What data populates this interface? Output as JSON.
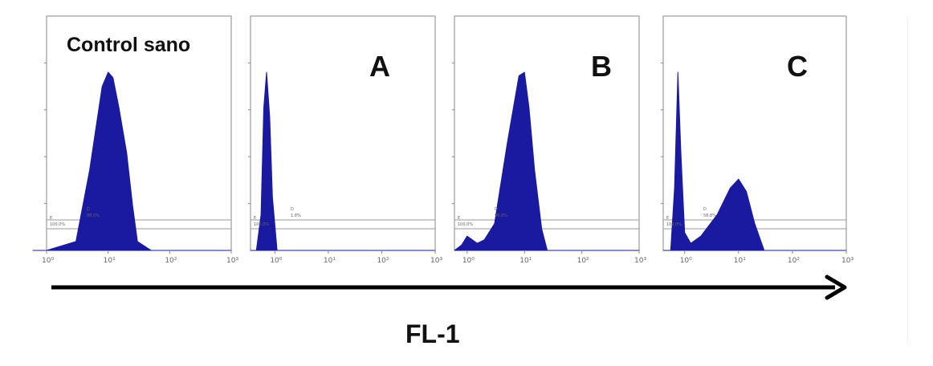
{
  "chart_data": [
    {
      "type": "area",
      "title": "Control sano",
      "x_scale": "log",
      "x_tick_labels": [
        "10⁰",
        "10¹",
        "10²",
        "10³"
      ],
      "xlim": [
        1,
        1000
      ],
      "gate_labels": [
        [
          "E",
          "100.0%"
        ],
        [
          "D",
          "98.5%"
        ]
      ],
      "x": [
        0.6,
        1,
        3,
        5,
        8,
        10,
        12,
        15,
        20,
        25,
        30,
        50,
        1000
      ],
      "y": [
        0,
        0,
        0.05,
        0.45,
        0.92,
        1.0,
        0.97,
        0.8,
        0.55,
        0.25,
        0.05,
        0,
        0
      ]
    },
    {
      "type": "area",
      "title": "A",
      "x_scale": "log",
      "x_tick_labels": [
        "10⁰",
        "10¹",
        "10²",
        "10³"
      ],
      "xlim": [
        0.35,
        1000
      ],
      "gate_labels": [
        [
          "E",
          "100.0%"
        ],
        [
          "D",
          "1.8%"
        ]
      ],
      "x": [
        0.35,
        0.45,
        0.55,
        0.62,
        0.7,
        0.8,
        0.9,
        1.1,
        1000
      ],
      "y": [
        0,
        0,
        0.2,
        0.8,
        1.0,
        0.75,
        0.3,
        0,
        0
      ]
    },
    {
      "type": "area",
      "title": "B",
      "x_scale": "log",
      "x_tick_labels": [
        "10⁰",
        "10¹",
        "10²",
        "10³"
      ],
      "xlim": [
        0.6,
        1000
      ],
      "gate_labels": [
        [
          "E",
          "100.0%"
        ],
        [
          "D",
          "96.8%"
        ]
      ],
      "x": [
        0.6,
        0.8,
        1,
        1.5,
        2,
        3,
        5,
        8,
        10,
        12,
        15,
        20,
        25,
        1000
      ],
      "y": [
        0,
        0.03,
        0.08,
        0.04,
        0.06,
        0.15,
        0.6,
        0.98,
        1.0,
        0.8,
        0.45,
        0.12,
        0,
        0
      ]
    },
    {
      "type": "area",
      "title": "C",
      "x_scale": "log",
      "x_tick_labels": [
        "10⁰",
        "10¹",
        "10²",
        "10³"
      ],
      "xlim": [
        0.4,
        1000
      ],
      "gate_labels": [
        [
          "E",
          "100.0%"
        ],
        [
          "D",
          "58.8%"
        ]
      ],
      "x": [
        0.4,
        0.55,
        0.65,
        0.75,
        0.85,
        1,
        1.3,
        2,
        4,
        7,
        10,
        14,
        20,
        30,
        1000
      ],
      "y": [
        0,
        0,
        0.35,
        1.0,
        0.55,
        0.1,
        0.04,
        0.08,
        0.2,
        0.35,
        0.4,
        0.33,
        0.15,
        0,
        0
      ]
    }
  ],
  "axis_label": "FL-1",
  "colors": {
    "fill": "#1a1aa0",
    "frame": "#888888",
    "gate": "#999999",
    "arrow": "#000000"
  }
}
